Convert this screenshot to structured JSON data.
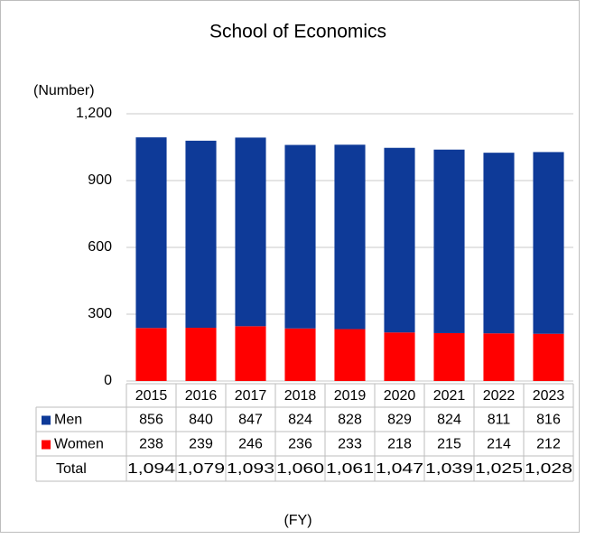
{
  "chart_data": {
    "type": "bar",
    "stacked": true,
    "title": "School of Economics",
    "y_label": "(Number)",
    "x_label": "(FY)",
    "categories": [
      "2015",
      "2016",
      "2017",
      "2018",
      "2019",
      "2020",
      "2021",
      "2022",
      "2023"
    ],
    "series": [
      {
        "name": "Men",
        "color": "#0e3a98",
        "values": [
          856,
          840,
          847,
          824,
          828,
          829,
          824,
          811,
          816
        ]
      },
      {
        "name": "Women",
        "color": "#ff0000",
        "values": [
          238,
          239,
          246,
          236,
          233,
          218,
          215,
          214,
          212
        ]
      }
    ],
    "totals": {
      "name": "Total",
      "labels": [
        "1,094",
        "1,079",
        "1,093",
        "1,060",
        "1,061",
        "1,047",
        "1,039",
        "1,025",
        "1,028"
      ]
    },
    "ylim": [
      0,
      1200
    ],
    "yticks": [
      0,
      300,
      600,
      900,
      {
        "value": 1200,
        "label": "1,200"
      }
    ],
    "grid": true
  }
}
